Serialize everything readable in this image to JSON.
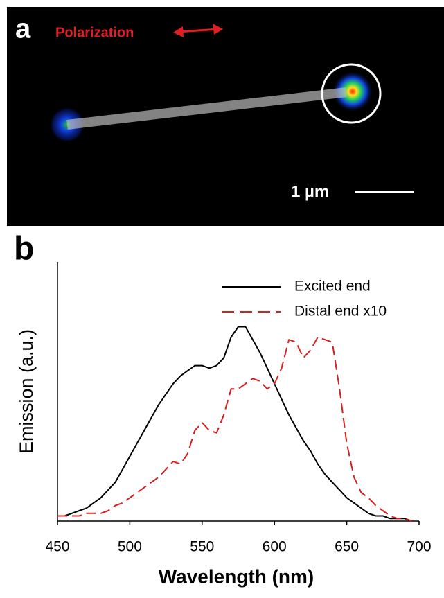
{
  "image_panel": {
    "label": "a",
    "polarization_label": "Polarization",
    "scale_bar_label": "1 µm"
  },
  "chart_data": {
    "type": "line",
    "panel_label": "b",
    "x_label": "Wavelength (nm)",
    "y_label": "Emission (a.u.)",
    "x": [
      450,
      455,
      460,
      465,
      470,
      475,
      480,
      485,
      490,
      495,
      500,
      505,
      510,
      515,
      520,
      525,
      530,
      535,
      540,
      545,
      550,
      555,
      560,
      565,
      570,
      575,
      580,
      585,
      590,
      595,
      600,
      605,
      610,
      615,
      620,
      625,
      630,
      635,
      640,
      645,
      650,
      655,
      660,
      665,
      670,
      675,
      680,
      685,
      690,
      695
    ],
    "xlim": [
      450,
      700
    ],
    "xticks": [
      450,
      500,
      550,
      600,
      650,
      700
    ],
    "ylim": [
      0,
      1
    ],
    "legend": "upper right",
    "series": [
      {
        "name": "Excited end",
        "color": "#000000",
        "style": "solid",
        "values": [
          0.02,
          0.02,
          0.03,
          0.04,
          0.05,
          0.07,
          0.09,
          0.12,
          0.15,
          0.2,
          0.25,
          0.3,
          0.35,
          0.4,
          0.45,
          0.49,
          0.53,
          0.56,
          0.58,
          0.6,
          0.6,
          0.59,
          0.6,
          0.63,
          0.71,
          0.75,
          0.75,
          0.7,
          0.65,
          0.59,
          0.53,
          0.47,
          0.41,
          0.36,
          0.31,
          0.27,
          0.22,
          0.18,
          0.15,
          0.12,
          0.09,
          0.07,
          0.05,
          0.03,
          0.02,
          0.02,
          0.01,
          0.01,
          0.01,
          0.0
        ]
      },
      {
        "name": "Distal end x10",
        "color": "#d42020",
        "style": "dashed",
        "values": [
          0.02,
          0.02,
          0.02,
          0.02,
          0.03,
          0.03,
          0.03,
          0.04,
          0.06,
          0.07,
          0.09,
          0.11,
          0.13,
          0.15,
          0.17,
          0.2,
          0.23,
          0.22,
          0.26,
          0.35,
          0.38,
          0.35,
          0.34,
          0.41,
          0.51,
          0.51,
          0.53,
          0.55,
          0.54,
          0.51,
          0.53,
          0.59,
          0.7,
          0.69,
          0.63,
          0.66,
          0.71,
          0.7,
          0.69,
          0.51,
          0.3,
          0.17,
          0.11,
          0.09,
          0.06,
          0.04,
          0.02,
          0.01,
          0.01,
          0.0
        ]
      }
    ]
  }
}
